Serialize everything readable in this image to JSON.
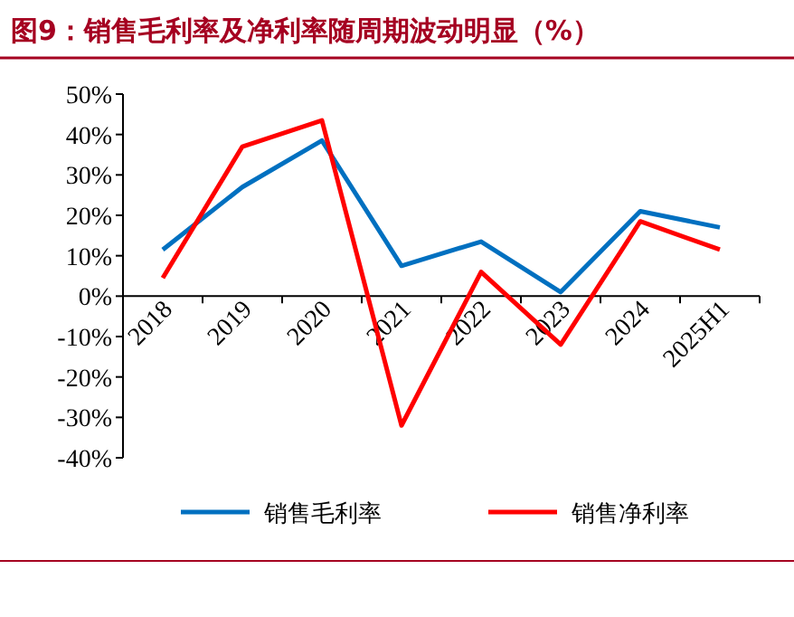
{
  "chart_data": {
    "type": "line",
    "title": "图9：销售毛利率及净利率随周期波动明显（%）",
    "categories": [
      "2018",
      "2019",
      "2020",
      "2021",
      "2022",
      "2023",
      "2024",
      "2025H1"
    ],
    "series": [
      {
        "name": "销售毛利率",
        "color": "#0070c0",
        "values": [
          11.5,
          27,
          38.5,
          7.5,
          13.5,
          1,
          21,
          17
        ]
      },
      {
        "name": "销售净利率",
        "color": "#ff0000",
        "values": [
          4.5,
          37,
          43.5,
          -32,
          6,
          -12,
          18.5,
          11.5
        ]
      }
    ],
    "ylim": [
      -40,
      50
    ],
    "yticks": [
      {
        "value": -40,
        "label": "-40%"
      },
      {
        "value": -30,
        "label": "-30%"
      },
      {
        "value": -20,
        "label": "-20%"
      },
      {
        "value": -10,
        "label": "-10%"
      },
      {
        "value": 0,
        "label": "0%"
      },
      {
        "value": 10,
        "label": "10%"
      },
      {
        "value": 20,
        "label": "20%"
      },
      {
        "value": 30,
        "label": "30%"
      },
      {
        "value": 40,
        "label": "40%"
      },
      {
        "value": 50,
        "label": "50%"
      }
    ],
    "legend": "bottom"
  }
}
